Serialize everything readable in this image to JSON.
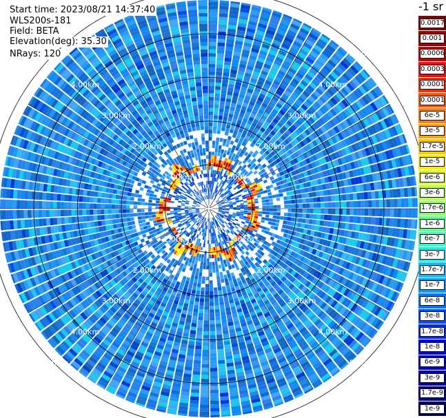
{
  "info": {
    "start_time": "Start time: 2023/08/21 14:37:40",
    "instrument": "WLS200s-181",
    "field": "Field: BETA",
    "elevation": "Elevation(deg): 35.30",
    "nrays": "NRays: 120"
  },
  "range_labels": [
    "1.00km",
    "2.00km",
    "3.00km",
    "4.00km",
    "5.00km"
  ],
  "colorbar": {
    "title": "-1 sr",
    "labels": [
      "0.0017",
      "0.001",
      "0.0006",
      "0.0003",
      "0.00017",
      "0.0001",
      "6e-5",
      "3e-5",
      "1.7e-5",
      "1e-5",
      "6e-6",
      "3e-6",
      "1.7e-6",
      "1e-6",
      "6e-7",
      "3e-7",
      "1.7e-7",
      "1e-7",
      "6e-8",
      "3e-8",
      "1.7e-8",
      "1e-8",
      "6e-9",
      "3e-9",
      "1.7e-9",
      "1e-9"
    ],
    "colors": [
      "#800000",
      "#a00000",
      "#c80000",
      "#e81010",
      "#ff2a00",
      "#ff5500",
      "#ff7f00",
      "#ffa400",
      "#ffc800",
      "#ffee00",
      "#e0ff18",
      "#b8ff40",
      "#8cff6c",
      "#60ff98",
      "#38ffc4",
      "#10f0ee",
      "#00c8ff",
      "#00a0ff",
      "#0078ff",
      "#0050ff",
      "#0028ff",
      "#0000f0",
      "#0000c8",
      "#0000a0",
      "#000080",
      "#000060"
    ]
  }
}
